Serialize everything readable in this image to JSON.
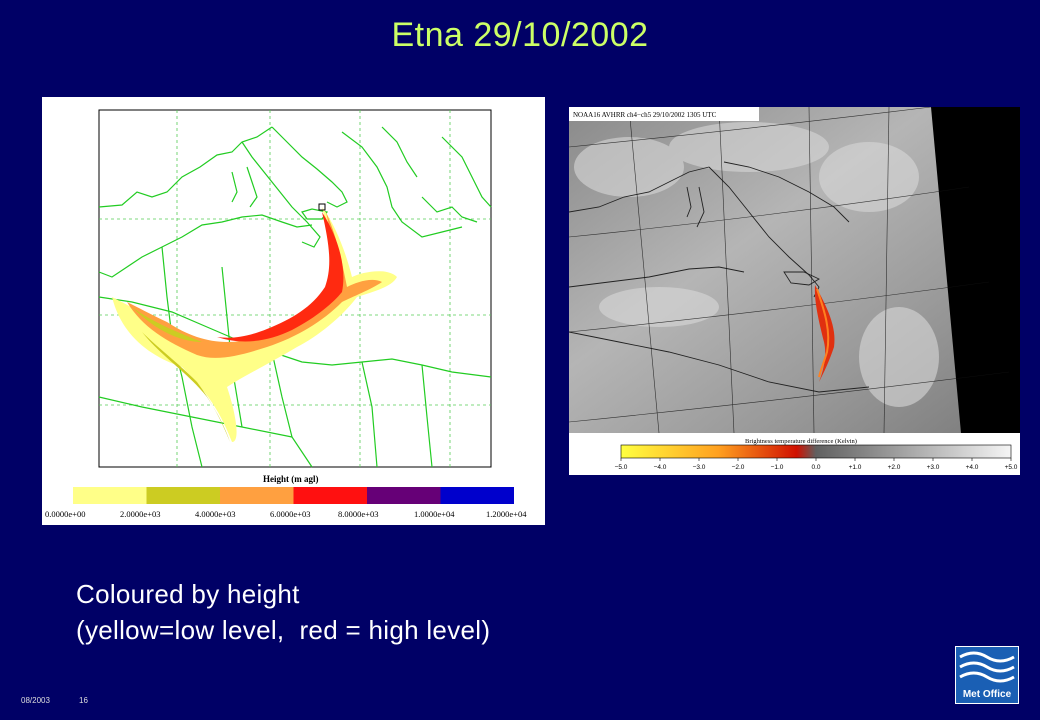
{
  "slide": {
    "title": "Etna 29/10/2002",
    "caption_line1": "Coloured by height",
    "caption_line2": "(yellow=low level,  red = high level)",
    "footer_date": "08/2003",
    "footer_page": "16",
    "logo_text": "Met Office"
  },
  "model_panel": {
    "legend_title": "Height (m agl)",
    "legend_colors": [
      "#ffff88",
      "#cccc22",
      "#ffa040",
      "#ff1010",
      "#660077",
      "#0000cc"
    ],
    "legend_labels": [
      "0.0000e+00",
      "2.0000e+03",
      "4.0000e+03",
      "6.0000e+03",
      "8.0000e+03",
      "1.0000e+04",
      "1.2000e+04"
    ]
  },
  "satellite_panel": {
    "header": "NOAA16 AVHRR ch4−ch5 29/10/2002 1305 UTC",
    "colorbar_title": "Brightness temperature difference (Kelvin)",
    "colorbar_labels": [
      "−5.0",
      "−4.0",
      "−3.0",
      "−2.0",
      "−1.0",
      "0.0",
      "+1.0",
      "+2.0",
      "+3.0",
      "+4.0",
      "+5.0"
    ]
  }
}
